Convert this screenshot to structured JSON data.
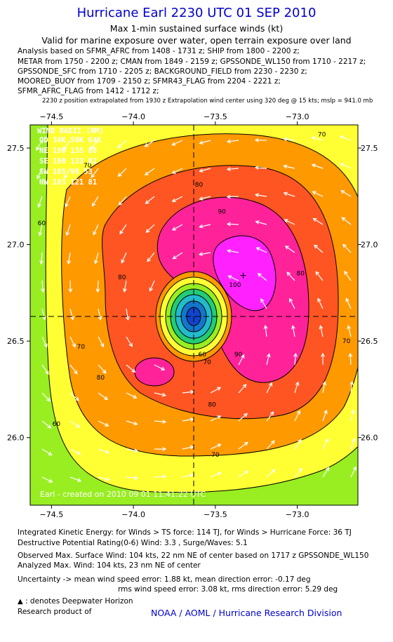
{
  "header": {
    "title": "Hurricane Earl 2230 UTC 01 SEP 2010",
    "subtitle": "Max 1-min sustained surface winds (kt)",
    "valid": "Valid for marine exposure over water, open terrain exposure over land",
    "sources": [
      "Analysis based on SFMR_AFRC from 1408 - 1731 z; SHIP from 1800 - 2200 z;",
      "METAR from 1750 - 2200 z; CMAN from 1849 - 2159 z; GPSSONDE_WL150 from 1710 - 2217 z;",
      "GPSSONDE_SFC from 1710 - 2205 z; BACKGROUND_FIELD from 2230 - 2230 z;",
      "MOORED_BUOY from 1709 - 2150 z; SFMR43_FLAG from 2204 - 2221 z;",
      "SFMR_AFRC_FLAG from 1412 - 1712 z;"
    ],
    "extrapolation": "2230 z position extrapolated from 1930 z Extrapolation wind center using 320 deg @ 15 kts; mslp = 941.0 mb"
  },
  "chart_data": {
    "type": "heatmap",
    "x_ticks": [
      "−74.5",
      "−74.0",
      "−73.5",
      "−73.0"
    ],
    "x_tick_values": [
      -74.5,
      -74.0,
      -73.5,
      -73.0
    ],
    "y_ticks": [
      "27.5",
      "27.0",
      "26.5",
      "26.0"
    ],
    "y_tick_values": [
      27.5,
      27.0,
      26.5,
      26.0
    ],
    "xlim": [
      -74.63,
      -72.63
    ],
    "ylim": [
      25.65,
      27.62
    ],
    "center": {
      "lon": -73.6,
      "lat": 26.6
    },
    "max_wind_location": {
      "lon": -73.33,
      "lat": 26.84
    },
    "contour_labels": [
      {
        "text": "70",
        "lon": -74.28,
        "lat": 27.4
      },
      {
        "text": "70",
        "lon": -72.85,
        "lat": 27.56
      },
      {
        "text": "80",
        "lon": -73.6,
        "lat": 27.3
      },
      {
        "text": "90",
        "lon": -73.46,
        "lat": 27.16
      },
      {
        "text": "100",
        "lon": -73.38,
        "lat": 26.78
      },
      {
        "text": "80",
        "lon": -74.07,
        "lat": 26.82
      },
      {
        "text": "80",
        "lon": -72.98,
        "lat": 26.84
      },
      {
        "text": "90",
        "lon": -73.36,
        "lat": 26.42
      },
      {
        "text": "80",
        "lon": -73.52,
        "lat": 26.16
      },
      {
        "text": "80",
        "lon": -74.2,
        "lat": 26.3
      },
      {
        "text": "70",
        "lon": -74.32,
        "lat": 26.46
      },
      {
        "text": "70",
        "lon": -73.5,
        "lat": 25.9
      },
      {
        "text": "70",
        "lon": -72.7,
        "lat": 26.49
      },
      {
        "text": "60",
        "lon": -74.56,
        "lat": 27.1
      },
      {
        "text": "60",
        "lon": -74.47,
        "lat": 26.06
      },
      {
        "text": "60",
        "lon": -73.58,
        "lat": 26.42
      },
      {
        "text": "70",
        "lon": -73.55,
        "lat": 26.38
      }
    ],
    "contour_levels": [
      60,
      70,
      80,
      90,
      100
    ],
    "colors": {
      "below60": "#99ee22",
      "60to70": "#ffff33",
      "70to80": "#ff9900",
      "80to90": "#ff5522",
      "90to100": "#ff2299",
      "above100": "#ff22ff",
      "core_inner": "#1144cc",
      "core_mid": "#22bbcc"
    },
    "watermark": "Earl - created on 2010 09 01 11:41:22 UTC",
    "wind_radii": {
      "title": "WIND RADII (NM)",
      "header": "QD 34K 50K 64K",
      "rows": [
        "NE 190 135 88",
        "SE 190 133 82",
        "SW 165  98 53",
        "NW 183 121 81"
      ]
    }
  },
  "footer": {
    "ike": "Integrated Kinetic Energy: for Winds > TS force: 114 TJ,  for Winds > Hurricane Force: 36 TJ",
    "dpr": "Destructive Potential Rating(0-6)  Wind: 3.3 , Surge/Waves: 5.1",
    "observed": "Observed Max. Surface Wind: 104 kts, 22 nm NE of center based on 1717 z GPSSONDE_WL150",
    "analyzed": "Analyzed Max. Wind: 104 kts, 23 nm NE of center",
    "uncertainty1": "Uncertainty -> mean wind speed error: 1.88 kt,   mean direction error:  -0.17 deg",
    "uncertainty2": "rms wind speed error: 3.08 kt,   rms direction error: 5.29 deg",
    "deepwater": ": denotes Deepwater Horizon",
    "research": "Research product of",
    "noaa": "NOAA / AOML / Hurricane Research Division"
  }
}
